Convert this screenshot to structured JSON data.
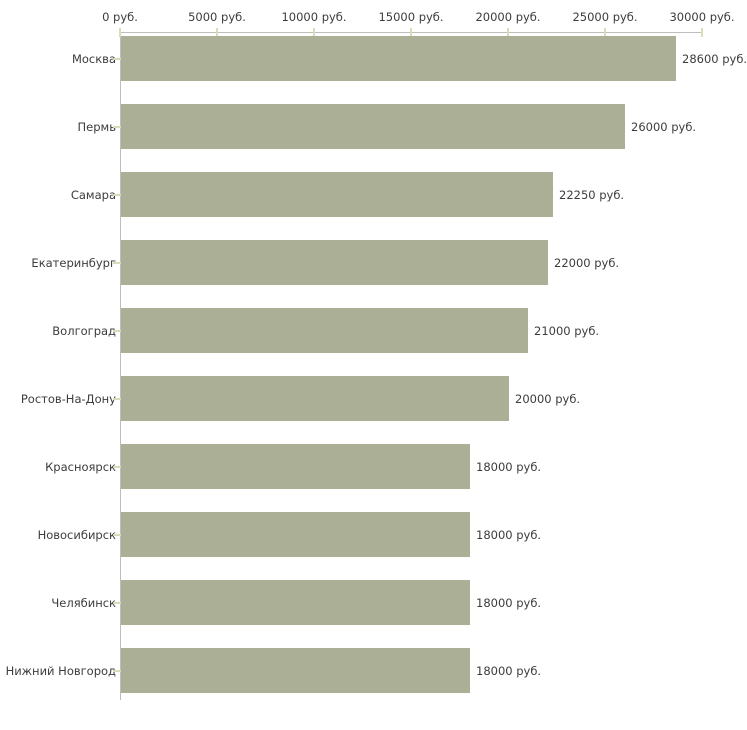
{
  "chart_data": {
    "type": "bar",
    "orientation": "horizontal",
    "title": "",
    "xlabel": "",
    "ylabel": "",
    "unit": "руб.",
    "categories": [
      "Москва",
      "Пермь",
      "Самара",
      "Екатеринбург",
      "Волгоград",
      "Ростов-На-Дону",
      "Красноярск",
      "Новосибирск",
      "Челябинск",
      "Нижний Новгород"
    ],
    "values": [
      28600,
      26000,
      22250,
      22000,
      21000,
      20000,
      18000,
      18000,
      18000,
      18000
    ],
    "value_labels": [
      "28600 руб.",
      "26000 руб.",
      "22250 руб.",
      "22000 руб.",
      "21000 руб.",
      "20000 руб.",
      "18000 руб.",
      "18000 руб.",
      "18000 руб.",
      "18000 руб."
    ],
    "x_ticks": [
      {
        "value": 0,
        "label": "0 руб."
      },
      {
        "value": 5000,
        "label": "5000 руб."
      },
      {
        "value": 10000,
        "label": "10000 руб."
      },
      {
        "value": 15000,
        "label": "15000 руб."
      },
      {
        "value": 20000,
        "label": "20000 руб."
      },
      {
        "value": 25000,
        "label": "25000 руб."
      },
      {
        "value": 30000,
        "label": "30000 руб."
      }
    ],
    "xlim": [
      0,
      30000
    ],
    "grid": false,
    "legend": null,
    "axis_position": "top",
    "colors": {
      "bar": "#abaf95",
      "axis": "#bdbdbd",
      "tick": "#d9dcb8",
      "text": "#3c3c3c"
    }
  }
}
